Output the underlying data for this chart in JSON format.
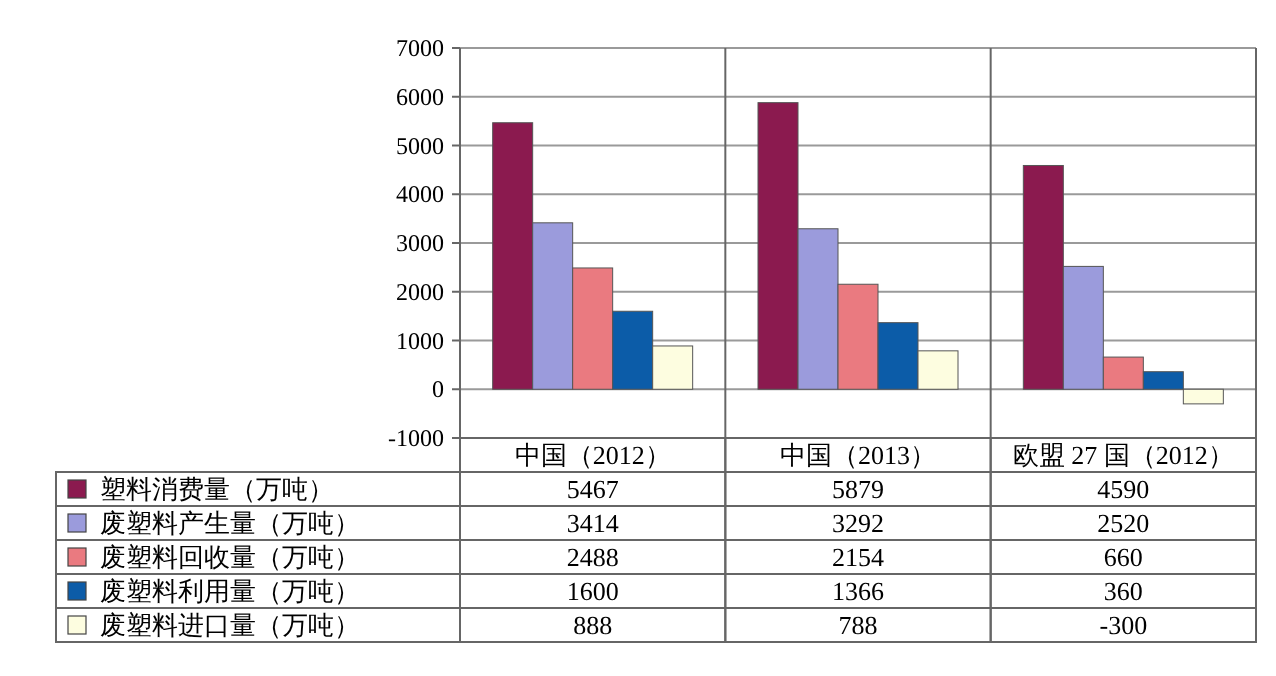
{
  "chart_data": {
    "type": "bar",
    "categories": [
      "中国（2012）",
      "中国（2013）",
      "欧盟 27 国（2012）"
    ],
    "series": [
      {
        "name": "塑料消费量（万吨）",
        "color": "#8b1a4f",
        "values": [
          5467,
          5879,
          4590
        ]
      },
      {
        "name": "废塑料产生量（万吨）",
        "color": "#9b9bdc",
        "values": [
          3414,
          3292,
          2520
        ]
      },
      {
        "name": "废塑料回收量（万吨）",
        "color": "#ea7a80",
        "values": [
          2488,
          2154,
          660
        ]
      },
      {
        "name": "废塑料利用量（万吨）",
        "color": "#0c5ca8",
        "values": [
          1600,
          1366,
          360
        ]
      },
      {
        "name": "废塑料进口量（万吨）",
        "color": "#fdfde0",
        "values": [
          888,
          788,
          -300
        ]
      }
    ],
    "ylim": [
      -1000,
      7000
    ],
    "yticks": [
      -1000,
      0,
      1000,
      2000,
      3000,
      4000,
      5000,
      6000,
      7000
    ],
    "grid": "y",
    "data_labels": true,
    "legend": "bottom left"
  }
}
